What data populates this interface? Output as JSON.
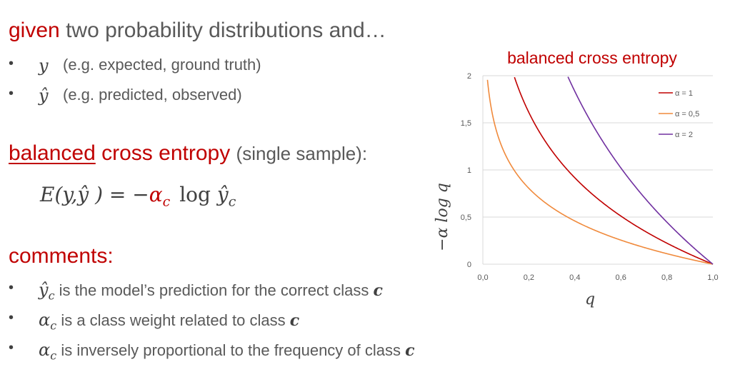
{
  "intro": {
    "given": "given",
    "rest": "two probability distributions and…",
    "items": [
      {
        "symbol": "y",
        "text": "(e.g. expected, ground truth)"
      },
      {
        "symbol": "ŷ",
        "text": "(e.g. predicted, observed)"
      }
    ]
  },
  "section": {
    "balanced": "balanced",
    "cross_entropy": "cross entropy",
    "suffix": "(single sample):"
  },
  "formula": {
    "lhs": "E(y,ŷ ) = −",
    "alpha": "α",
    "alpha_sub": "c",
    "log": "log",
    "yhat": "ŷ",
    "yhat_sub": "c"
  },
  "comments": {
    "heading": "comments:",
    "items": [
      {
        "symbol": "ŷ",
        "sub": "c",
        "text": "is the model’s prediction for the correct class",
        "tail": "c"
      },
      {
        "symbol": "α",
        "sub": "c",
        "text": "is a class weight related to class",
        "tail": "c"
      },
      {
        "symbol": "α",
        "sub": "c",
        "text": "is inversely proportional to the frequency of class",
        "tail": "c"
      }
    ]
  },
  "colors": {
    "accent": "#c00000",
    "alpha1": "#c00000",
    "alpha05": "#f08a3c",
    "alpha2": "#7030a0"
  },
  "chart_data": {
    "type": "line",
    "title": "balanced cross entropy",
    "xlabel": "q",
    "ylabel": "−α log q",
    "xlim": [
      0,
      1
    ],
    "ylim": [
      0,
      2
    ],
    "xticks": [
      "0,0",
      "0,2",
      "0,4",
      "0,6",
      "0,8",
      "1,0"
    ],
    "yticks": [
      "0",
      "0,5",
      "1",
      "1,5",
      "2"
    ],
    "grid": true,
    "legend_position": "top-right",
    "series": [
      {
        "name": "α = 1",
        "alpha": 1,
        "color": "#c00000"
      },
      {
        "name": "α = 0,5",
        "alpha": 0.5,
        "color": "#f08a3c"
      },
      {
        "name": "α = 2",
        "alpha": 2,
        "color": "#7030a0"
      }
    ]
  }
}
